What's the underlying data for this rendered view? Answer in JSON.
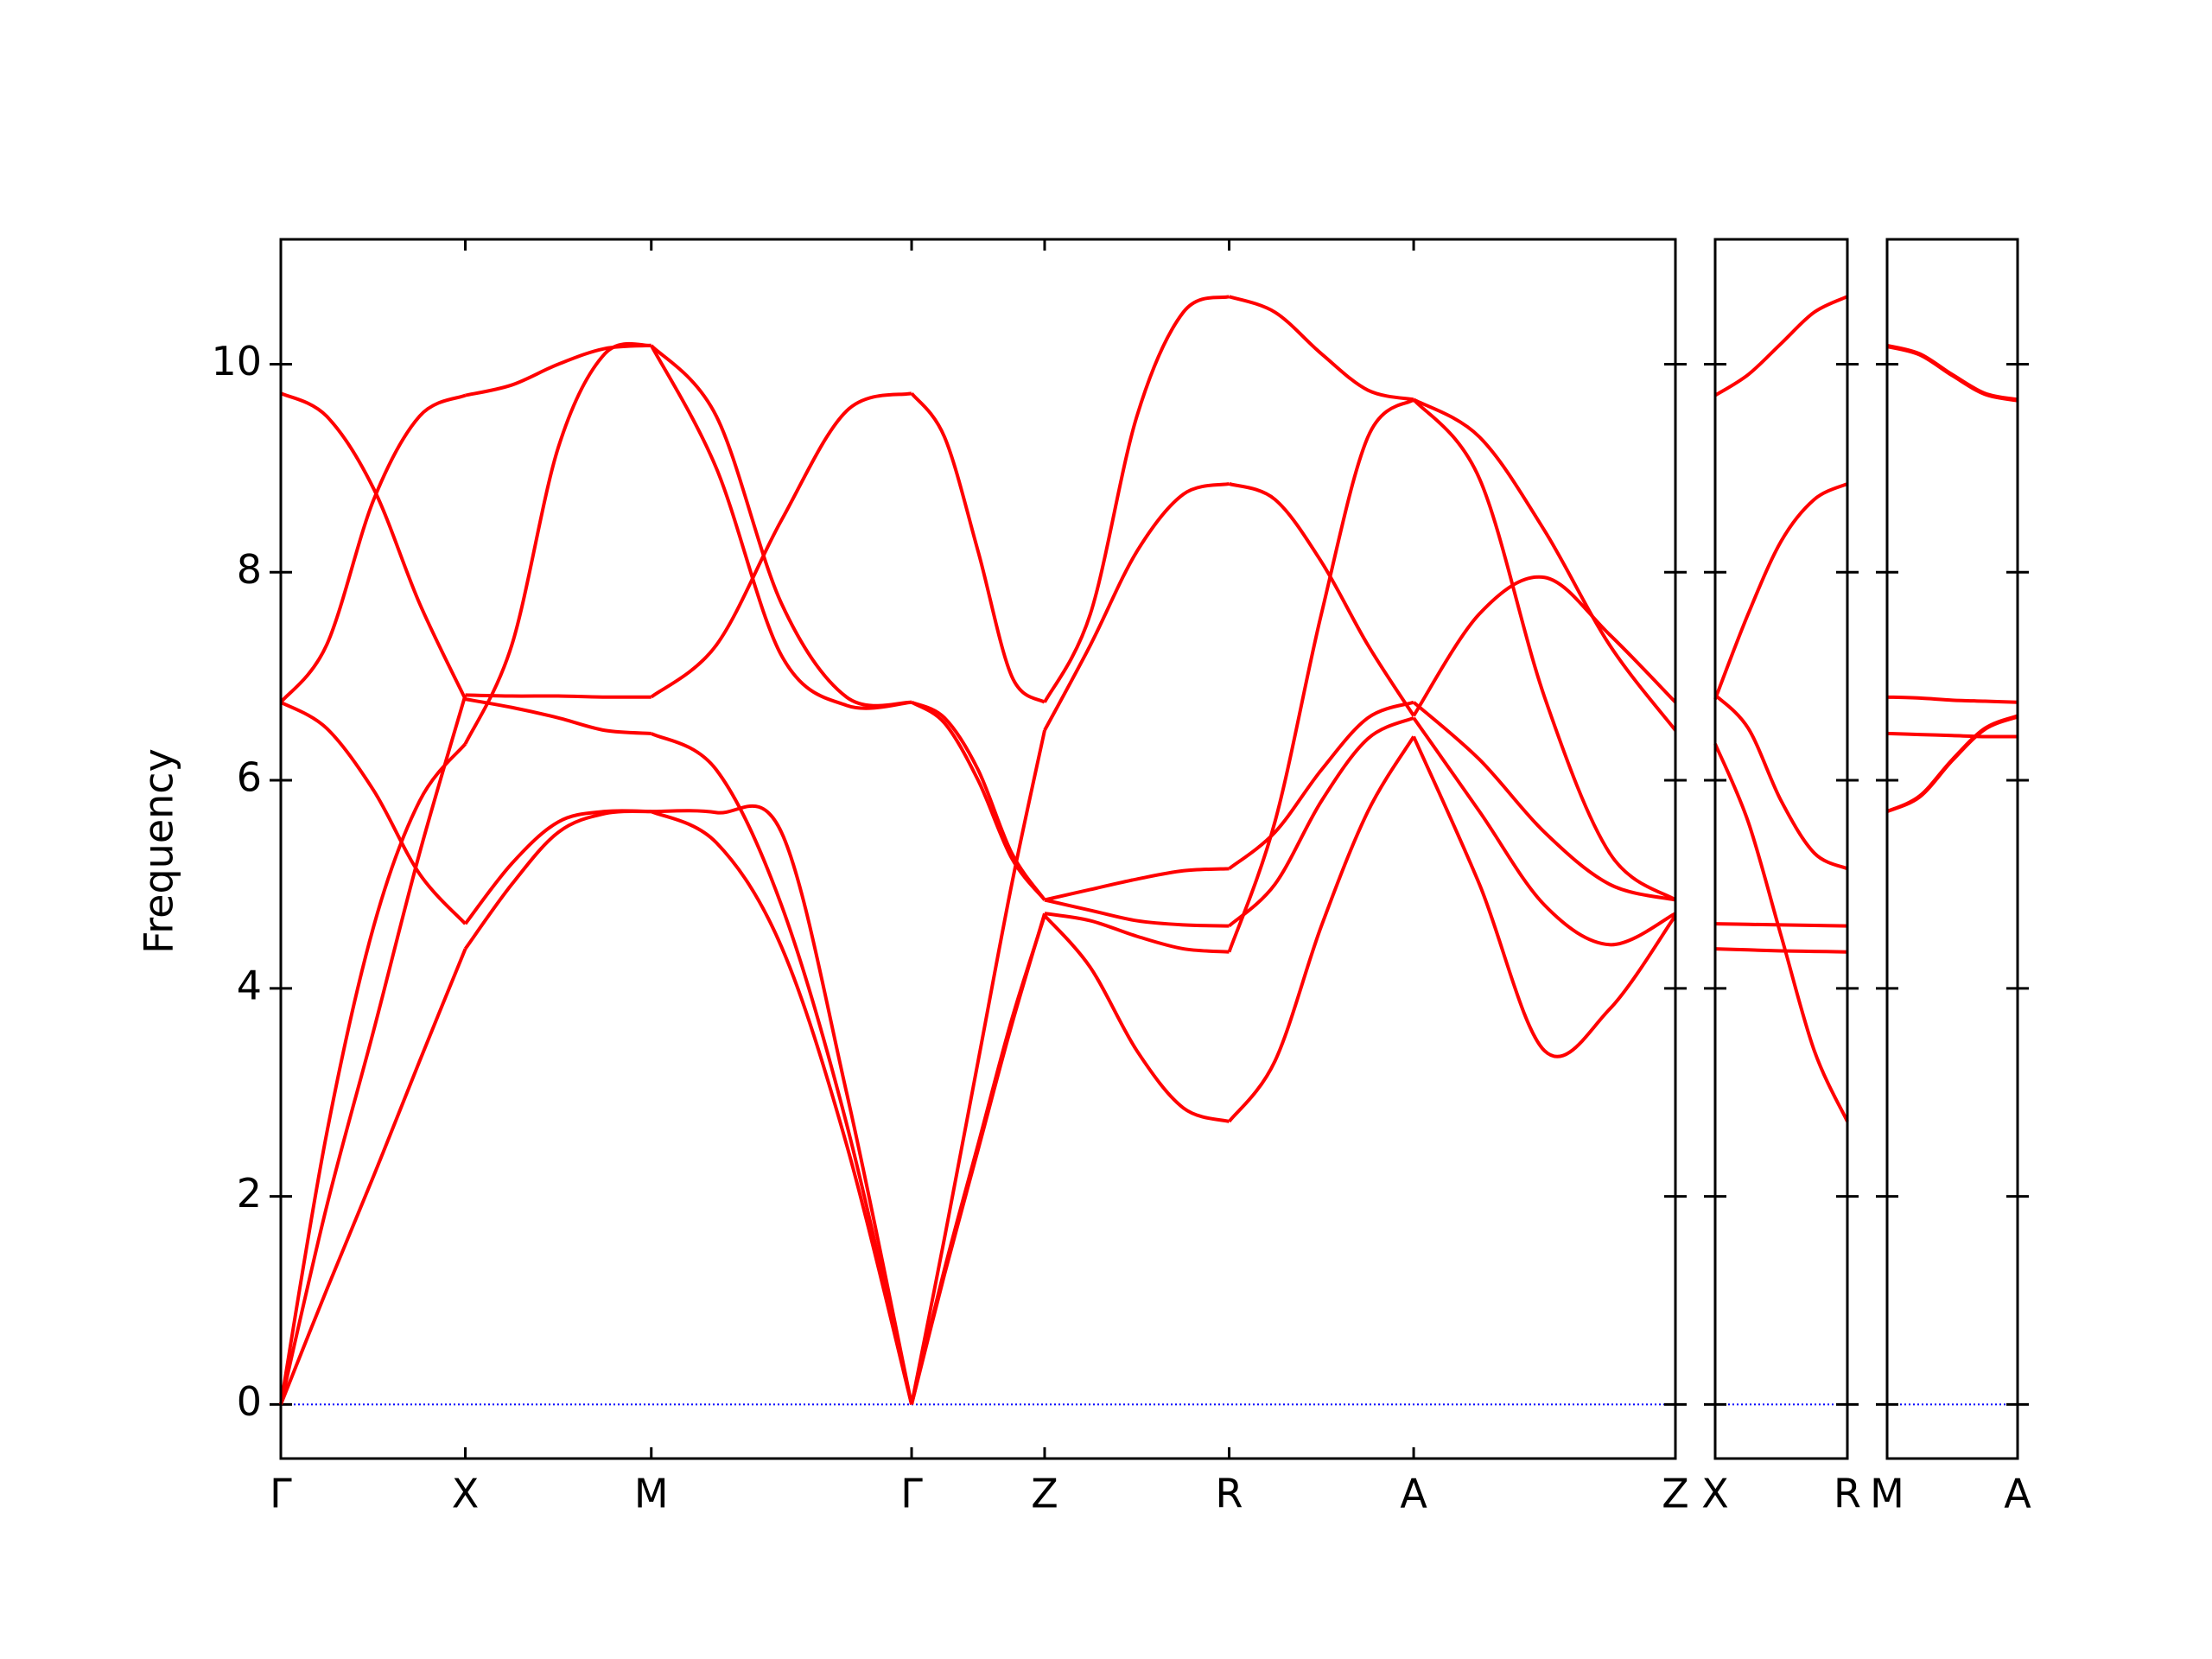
{
  "chart_data": [
    {
      "type": "line",
      "ylabel": "Frequency",
      "color": "#ff0000",
      "zero_line_color": "#0000ff",
      "xlim": [
        0,
        9.75
      ],
      "ylim": [
        -0.52,
        11.2
      ],
      "yticks": [
        0,
        2,
        4,
        6,
        8,
        10
      ],
      "xticks": [
        {
          "value": 0,
          "label": "Γ"
        },
        {
          "value": 1.29,
          "label": "X"
        },
        {
          "value": 2.59,
          "label": "M"
        },
        {
          "value": 4.41,
          "label": "Γ"
        },
        {
          "value": 5.34,
          "label": "Z"
        },
        {
          "value": 6.63,
          "label": "R"
        },
        {
          "value": 7.92,
          "label": "A"
        },
        {
          "value": 9.75,
          "label": "Z"
        }
      ],
      "x": [
        0,
        0.32,
        0.65,
        0.97,
        1.29,
        1.615,
        1.94,
        2.265,
        2.59,
        3.045,
        3.5,
        3.955,
        4.41,
        4.64,
        4.875,
        5.11,
        5.34,
        5.66,
        5.985,
        6.31,
        6.63,
        6.95,
        7.275,
        7.6,
        7.92,
        8.38,
        8.835,
        9.29,
        9.75
      ],
      "series": [
        {
          "values": [
            0,
            1.1,
            2.2,
            3.3,
            4.38,
            5.0,
            5.5,
            5.68,
            5.7,
            5.4,
            4.4,
            2.5,
            0,
            1.3,
            2.5,
            3.7,
            4.7,
            4.2,
            3.4,
            2.85,
            2.72,
            3.3,
            4.6,
            5.7,
            6.42,
            5.0,
            3.4,
            3.8,
            4.7
          ]
        },
        {
          "values": [
            0,
            2.6,
            4.6,
            5.8,
            6.35,
            7.3,
            9.2,
            10.1,
            10.18,
            9.0,
            7.2,
            6.72,
            6.75,
            6.6,
            6.1,
            5.3,
            4.85,
            4.75,
            4.65,
            4.61,
            4.6,
            5.0,
            5.8,
            6.4,
            6.6,
            5.7,
            4.8,
            4.42,
            4.72
          ]
        },
        {
          "values": [
            0,
            1.9,
            3.6,
            5.3,
            6.82,
            6.81,
            6.81,
            6.8,
            6.8,
            7.3,
            8.5,
            9.55,
            9.72,
            9.3,
            8.2,
            7.0,
            6.75,
            7.6,
            9.5,
            10.5,
            10.65,
            10.5,
            10.1,
            9.75,
            9.66,
            9.3,
            8.4,
            7.3,
            6.48
          ]
        },
        {
          "values": [
            6.75,
            6.5,
            5.9,
            5.1,
            4.62,
            5.2,
            5.6,
            5.7,
            5.7,
            5.69,
            5.5,
            3.0,
            0,
            1.25,
            2.45,
            3.65,
            4.72,
            4.65,
            4.5,
            4.38,
            4.35,
            5.6,
            7.6,
            9.3,
            9.66,
            8.9,
            6.8,
            5.3,
            4.85
          ]
        },
        {
          "values": [
            9.72,
            9.5,
            8.8,
            7.7,
            6.78,
            6.7,
            6.6,
            6.48,
            6.45,
            6.1,
            4.8,
            2.7,
            0,
            1.6,
            3.3,
            5.0,
            6.48,
            7.3,
            8.2,
            8.75,
            8.85,
            8.7,
            8.1,
            7.3,
            6.62,
            7.6,
            7.95,
            7.4,
            6.75
          ]
        },
        {
          "values": [
            6.75,
            7.3,
            8.7,
            9.5,
            9.7,
            9.8,
            10.0,
            10.15,
            10.18,
            9.5,
            7.7,
            6.8,
            6.75,
            6.55,
            6.0,
            5.25,
            4.85,
            4.95,
            5.05,
            5.13,
            5.15,
            5.5,
            6.1,
            6.6,
            6.75,
            6.2,
            5.5,
            5.0,
            4.85
          ]
        }
      ]
    },
    {
      "type": "line",
      "color": "#ff0000",
      "zero_line_color": "#0000ff",
      "xlim": [
        0,
        0.92
      ],
      "ylim": [
        -0.52,
        11.2
      ],
      "xticks": [
        {
          "value": 0,
          "label": "X"
        },
        {
          "value": 0.92,
          "label": "R"
        }
      ],
      "x": [
        0,
        0.23,
        0.46,
        0.69,
        0.92
      ],
      "series": [
        {
          "values": [
            4.38,
            4.37,
            4.36,
            4.355,
            4.35
          ]
        },
        {
          "values": [
            4.62,
            4.615,
            4.61,
            4.605,
            4.6
          ]
        },
        {
          "values": [
            6.35,
            5.6,
            4.5,
            3.4,
            2.72
          ]
        },
        {
          "values": [
            6.82,
            6.5,
            5.8,
            5.3,
            5.15
          ]
        },
        {
          "values": [
            6.78,
            7.6,
            8.3,
            8.7,
            8.85
          ]
        },
        {
          "values": [
            9.7,
            9.9,
            10.2,
            10.5,
            10.65
          ]
        }
      ]
    },
    {
      "type": "line",
      "color": "#ff0000",
      "zero_line_color": "#0000ff",
      "xlim": [
        0,
        0.91
      ],
      "ylim": [
        -0.52,
        11.2
      ],
      "xticks": [
        {
          "value": 0,
          "label": "M"
        },
        {
          "value": 0.91,
          "label": "A"
        }
      ],
      "x": [
        0,
        0.2275,
        0.455,
        0.6825,
        0.91
      ],
      "series": [
        {
          "values": [
            5.7,
            5.85,
            6.2,
            6.5,
            6.62
          ]
        },
        {
          "values": [
            5.7,
            5.84,
            6.19,
            6.49,
            6.61
          ]
        },
        {
          "values": [
            6.45,
            6.44,
            6.43,
            6.42,
            6.42
          ]
        },
        {
          "values": [
            6.8,
            6.79,
            6.77,
            6.76,
            6.75
          ]
        },
        {
          "values": [
            10.18,
            10.1,
            9.9,
            9.72,
            9.66
          ]
        },
        {
          "values": [
            10.17,
            10.09,
            9.89,
            9.71,
            9.65
          ]
        }
      ]
    }
  ]
}
